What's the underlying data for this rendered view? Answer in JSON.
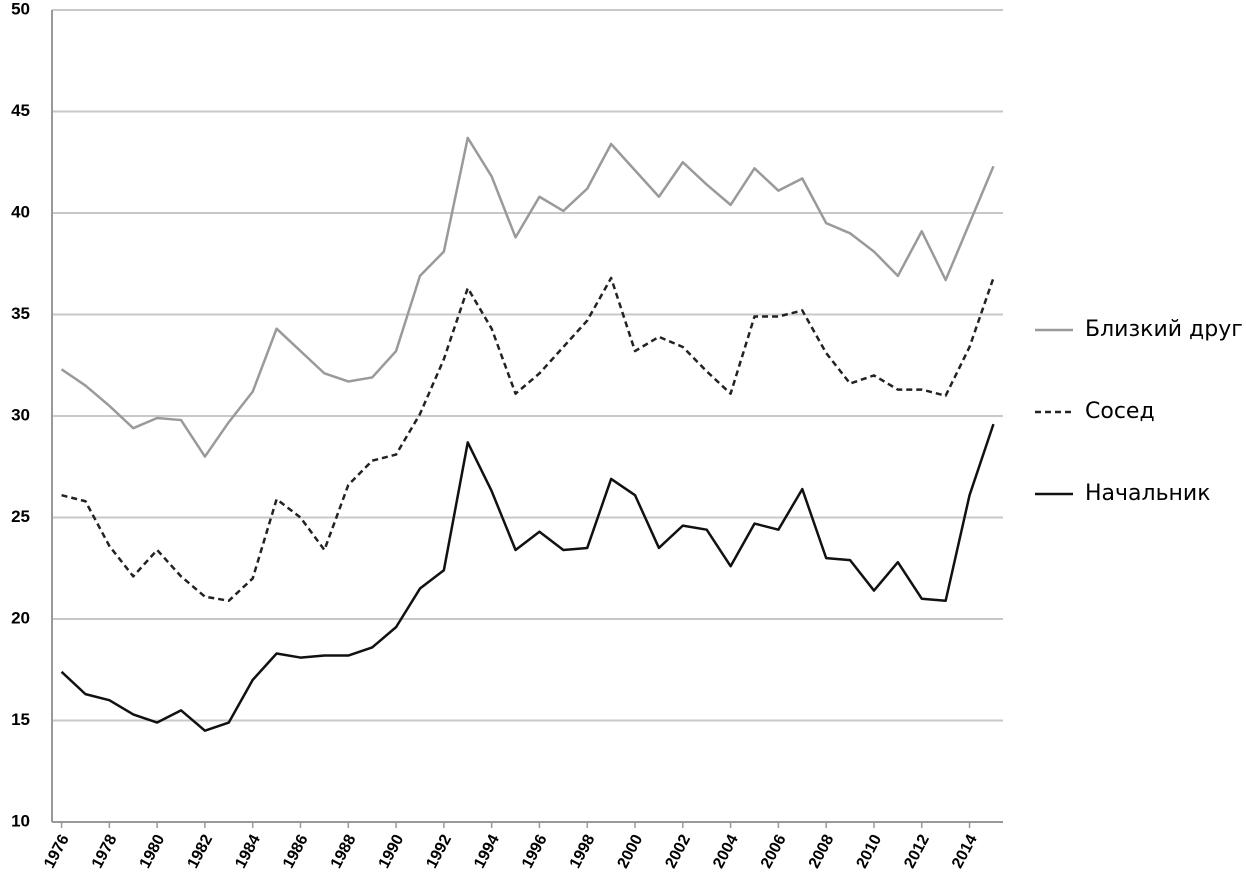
{
  "chart_data": {
    "type": "line",
    "x": [
      1976,
      1977,
      1978,
      1979,
      1980,
      1981,
      1982,
      1983,
      1984,
      1985,
      1986,
      1987,
      1988,
      1989,
      1990,
      1991,
      1992,
      1993,
      1994,
      1995,
      1996,
      1997,
      1998,
      1999,
      2000,
      2001,
      2002,
      2003,
      2004,
      2005,
      2006,
      2007,
      2008,
      2009,
      2010,
      2011,
      2012,
      2013,
      2014,
      2015
    ],
    "xlim": [
      1975.6,
      2015.4
    ],
    "xticks": [
      1976,
      1978,
      1980,
      1982,
      1984,
      1986,
      1988,
      1990,
      1992,
      1994,
      1996,
      1998,
      2000,
      2002,
      2004,
      2006,
      2008,
      2010,
      2012,
      2014
    ],
    "ylim": [
      10,
      50
    ],
    "yticks": [
      10,
      15,
      20,
      25,
      30,
      35,
      40,
      45,
      50
    ],
    "grid": true,
    "legend": "right",
    "series": [
      {
        "name": "Близкий друг",
        "color": "#9a9a9a",
        "dash": "solid",
        "values": [
          32.3,
          31.5,
          30.5,
          29.4,
          29.9,
          29.8,
          28.0,
          29.7,
          31.2,
          34.3,
          33.2,
          32.1,
          31.7,
          31.9,
          33.2,
          36.9,
          38.1,
          43.7,
          41.8,
          38.8,
          40.8,
          40.1,
          41.2,
          43.4,
          42.1,
          40.8,
          42.5,
          41.4,
          40.4,
          42.2,
          41.1,
          41.7,
          39.5,
          39.0,
          38.1,
          36.9,
          39.1,
          36.7,
          39.5,
          42.3
        ]
      },
      {
        "name": "Сосед",
        "color": "#222222",
        "dash": "dashed",
        "values": [
          26.1,
          25.8,
          23.6,
          22.1,
          23.4,
          22.1,
          21.1,
          20.9,
          22.0,
          25.9,
          25.0,
          23.4,
          26.6,
          27.8,
          28.1,
          30.1,
          32.8,
          36.3,
          34.3,
          31.1,
          32.1,
          33.4,
          34.7,
          36.8,
          33.2,
          33.9,
          33.4,
          32.2,
          31.1,
          34.9,
          34.9,
          35.2,
          33.1,
          31.6,
          32.0,
          31.3,
          31.3,
          31.0,
          33.4,
          36.8
        ]
      },
      {
        "name": "Начальник",
        "color": "#111111",
        "dash": "solid",
        "values": [
          17.4,
          16.3,
          16.0,
          15.3,
          14.9,
          15.5,
          14.5,
          14.9,
          17.0,
          18.3,
          18.1,
          18.2,
          18.2,
          18.6,
          19.6,
          21.5,
          22.4,
          28.7,
          26.3,
          23.4,
          24.3,
          23.4,
          23.5,
          26.9,
          26.1,
          23.5,
          24.6,
          24.4,
          22.6,
          24.7,
          24.4,
          26.4,
          23.0,
          22.9,
          21.4,
          22.8,
          21.0,
          20.9,
          26.1,
          29.6
        ]
      }
    ]
  }
}
